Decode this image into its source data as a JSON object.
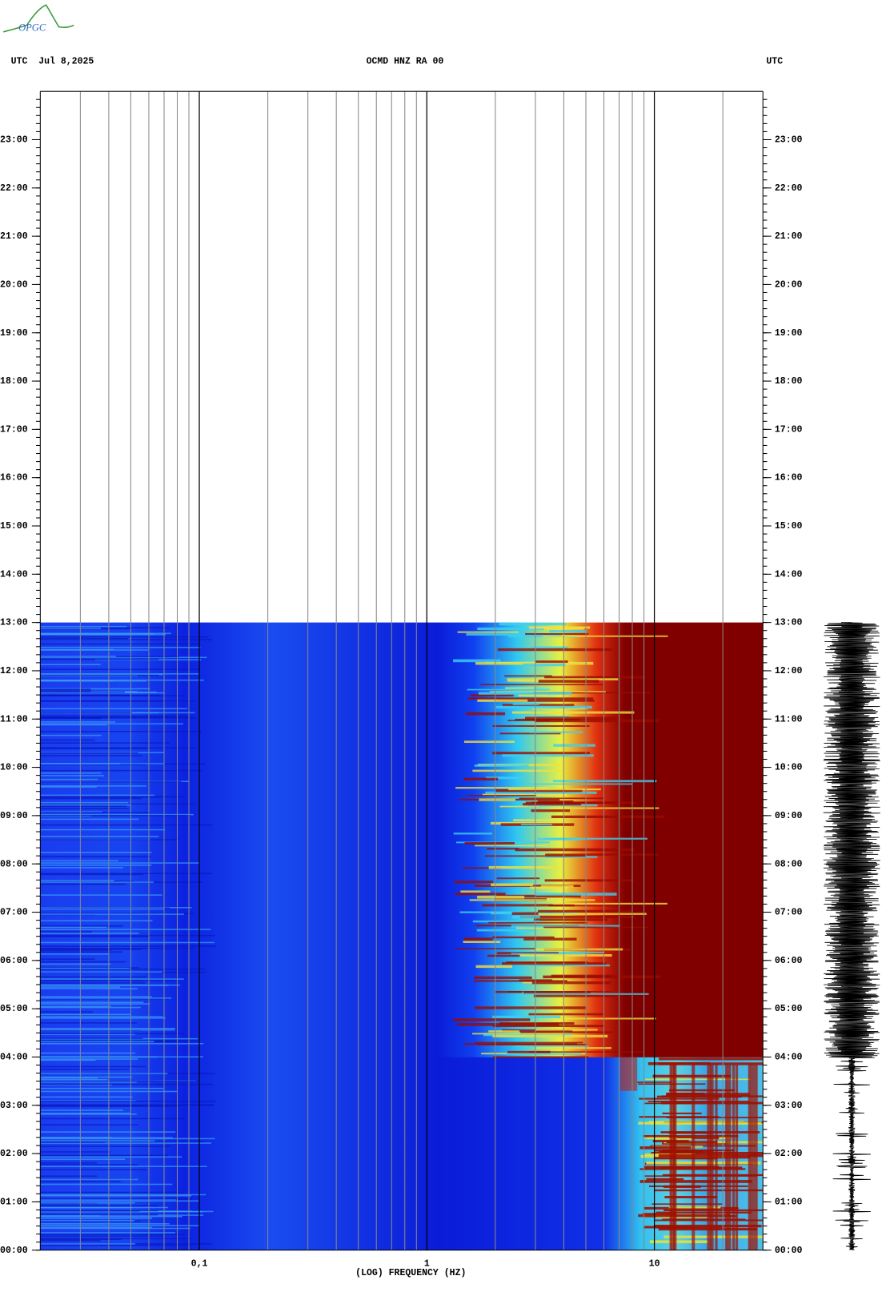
{
  "logo": "OPGC",
  "chart_data": {
    "type": "spectrogram",
    "title": "OCMD HNZ RA 00",
    "date_label": "UTC  Jul 8,2025",
    "right_label": "UTC",
    "xlabel": "(LOG) FREQUENCY (HZ)",
    "xscale": "log",
    "xlim": [
      0.02,
      30
    ],
    "xticks": [
      {
        "value": 0.1,
        "label": "0,1"
      },
      {
        "value": 1,
        "label": "1"
      },
      {
        "value": 10,
        "label": "10"
      }
    ],
    "xgrid_minor": [
      0.03,
      0.04,
      0.05,
      0.06,
      0.07,
      0.08,
      0.09,
      0.2,
      0.3,
      0.4,
      0.5,
      0.6,
      0.7,
      0.8,
      0.9,
      2,
      3,
      4,
      5,
      6,
      7,
      8,
      9,
      20
    ],
    "ylim": [
      0,
      24
    ],
    "yticks": [
      {
        "value": 0,
        "label": "00:00"
      },
      {
        "value": 1,
        "label": "01:00"
      },
      {
        "value": 2,
        "label": "02:00"
      },
      {
        "value": 3,
        "label": "03:00"
      },
      {
        "value": 4,
        "label": "04:00"
      },
      {
        "value": 5,
        "label": "05:00"
      },
      {
        "value": 6,
        "label": "06:00"
      },
      {
        "value": 7,
        "label": "07:00"
      },
      {
        "value": 8,
        "label": "08:00"
      },
      {
        "value": 9,
        "label": "09:00"
      },
      {
        "value": 10,
        "label": "10:00"
      },
      {
        "value": 11,
        "label": "11:00"
      },
      {
        "value": 12,
        "label": "12:00"
      },
      {
        "value": 13,
        "label": "13:00"
      },
      {
        "value": 14,
        "label": "14:00"
      },
      {
        "value": 15,
        "label": "15:00"
      },
      {
        "value": 16,
        "label": "16:00"
      },
      {
        "value": 17,
        "label": "17:00"
      },
      {
        "value": 18,
        "label": "18:00"
      },
      {
        "value": 19,
        "label": "19:00"
      },
      {
        "value": 20,
        "label": "20:00"
      },
      {
        "value": 21,
        "label": "21:00"
      },
      {
        "value": 22,
        "label": "22:00"
      },
      {
        "value": 23,
        "label": "23:00"
      }
    ],
    "data_end": 13
  }
}
